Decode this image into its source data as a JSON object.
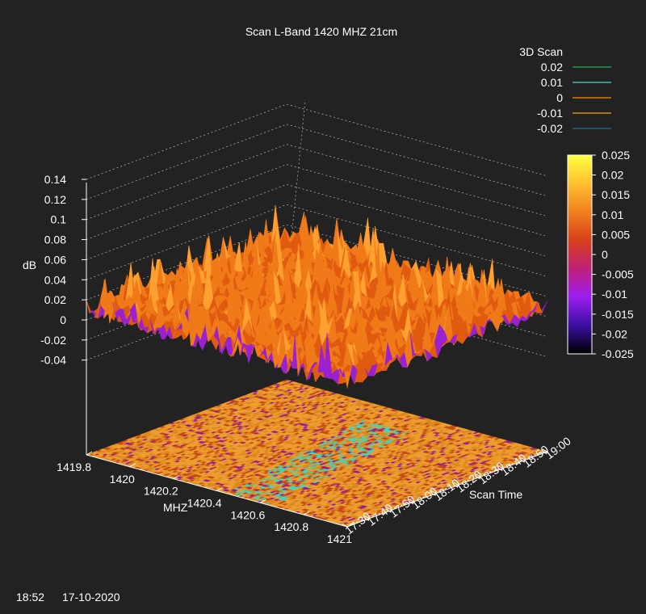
{
  "chart_data": {
    "type": "surface3d",
    "title": "Scan L-Band 1420 MHZ 21cm",
    "xlabel": "MHZ",
    "ylabel": "Scan Time",
    "zlabel": "dB",
    "x_ticks": [
      "1419.8",
      "1420",
      "1420.2",
      "1420.4",
      "1420.6",
      "1420.8",
      "1421"
    ],
    "y_ticks": [
      "17:30",
      "17:40",
      "17:50",
      "18:00",
      "18:10",
      "18:20",
      "18:30",
      "18:40",
      "18:50",
      "19:00"
    ],
    "z_ticks": [
      "0.14",
      "0.12",
      "0.1",
      "0.08",
      "0.06",
      "0.04",
      "0.02",
      "0",
      "-0.02",
      "-0.04"
    ],
    "xlim": [
      1419.8,
      1421.0
    ],
    "ylim": [
      "17:30",
      "19:00"
    ],
    "zlim": [
      -0.04,
      0.14
    ],
    "surface_level_db": 0.01,
    "surface_noise_db": 0.01,
    "legend": {
      "title": "3D Scan",
      "placement": "top-right",
      "entries": [
        {
          "label": "0.02",
          "color": "#22aa55"
        },
        {
          "label": "0.01",
          "color": "#40e0d0"
        },
        {
          "label": "0",
          "color": "#ff8c00"
        },
        {
          "label": "-0.01",
          "color": "#ffa500"
        },
        {
          "label": "-0.02",
          "color": "#1f6f9f"
        }
      ]
    },
    "colorbar": {
      "ticks": [
        "0.025",
        "0.02",
        "0.015",
        "0.01",
        "0.005",
        "0",
        "-0.005",
        "-0.01",
        "-0.015",
        "-0.02",
        "-0.025"
      ],
      "range": [
        -0.025,
        0.025
      ],
      "stops": [
        "#000000",
        "#3a0ea0",
        "#9a1ef0",
        "#c0207a",
        "#d8401a",
        "#f08020",
        "#ffc030",
        "#ffff40"
      ]
    },
    "heatmap_palette": [
      "#f0a030",
      "#e08a20",
      "#c84a18",
      "#9a1aa0",
      "#40d8c0"
    ]
  },
  "footer": {
    "time": "18:52",
    "date": "17-10-2020"
  }
}
